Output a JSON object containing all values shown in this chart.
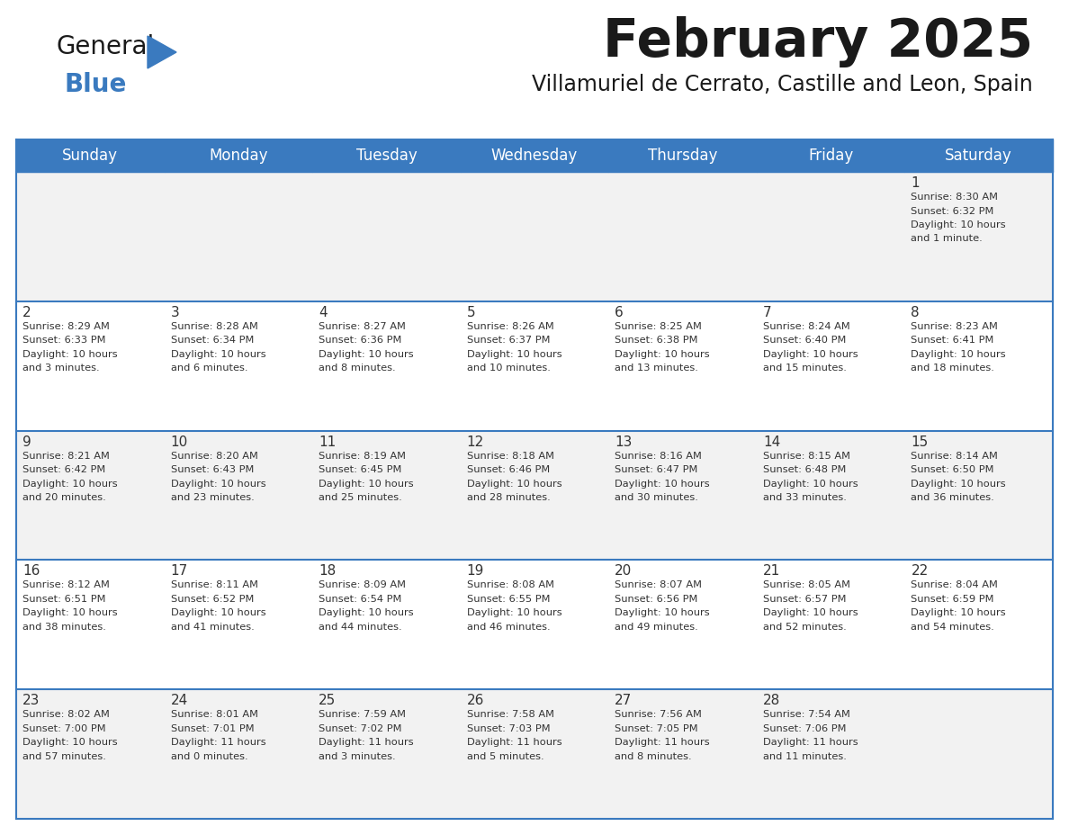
{
  "title": "February 2025",
  "subtitle": "Villamuriel de Cerrato, Castille and Leon, Spain",
  "header_color": "#3a7abf",
  "header_text_color": "#ffffff",
  "bg_color": "#ffffff",
  "cell_bg_even": "#f2f2f2",
  "cell_bg_odd": "#ffffff",
  "border_color": "#3a7abf",
  "day_headers": [
    "Sunday",
    "Monday",
    "Tuesday",
    "Wednesday",
    "Thursday",
    "Friday",
    "Saturday"
  ],
  "title_color": "#1a1a1a",
  "subtitle_color": "#1a1a1a",
  "number_color": "#333333",
  "text_color": "#333333",
  "logo_general_color": "#1a1a1a",
  "logo_blue_color": "#3a7abf",
  "days": [
    {
      "day": 1,
      "col": 6,
      "row": 0,
      "sunrise": "8:30 AM",
      "sunset": "6:32 PM",
      "daylight": "10 hours and 1 minute."
    },
    {
      "day": 2,
      "col": 0,
      "row": 1,
      "sunrise": "8:29 AM",
      "sunset": "6:33 PM",
      "daylight": "10 hours and 3 minutes."
    },
    {
      "day": 3,
      "col": 1,
      "row": 1,
      "sunrise": "8:28 AM",
      "sunset": "6:34 PM",
      "daylight": "10 hours and 6 minutes."
    },
    {
      "day": 4,
      "col": 2,
      "row": 1,
      "sunrise": "8:27 AM",
      "sunset": "6:36 PM",
      "daylight": "10 hours and 8 minutes."
    },
    {
      "day": 5,
      "col": 3,
      "row": 1,
      "sunrise": "8:26 AM",
      "sunset": "6:37 PM",
      "daylight": "10 hours and 10 minutes."
    },
    {
      "day": 6,
      "col": 4,
      "row": 1,
      "sunrise": "8:25 AM",
      "sunset": "6:38 PM",
      "daylight": "10 hours and 13 minutes."
    },
    {
      "day": 7,
      "col": 5,
      "row": 1,
      "sunrise": "8:24 AM",
      "sunset": "6:40 PM",
      "daylight": "10 hours and 15 minutes."
    },
    {
      "day": 8,
      "col": 6,
      "row": 1,
      "sunrise": "8:23 AM",
      "sunset": "6:41 PM",
      "daylight": "10 hours and 18 minutes."
    },
    {
      "day": 9,
      "col": 0,
      "row": 2,
      "sunrise": "8:21 AM",
      "sunset": "6:42 PM",
      "daylight": "10 hours and 20 minutes."
    },
    {
      "day": 10,
      "col": 1,
      "row": 2,
      "sunrise": "8:20 AM",
      "sunset": "6:43 PM",
      "daylight": "10 hours and 23 minutes."
    },
    {
      "day": 11,
      "col": 2,
      "row": 2,
      "sunrise": "8:19 AM",
      "sunset": "6:45 PM",
      "daylight": "10 hours and 25 minutes."
    },
    {
      "day": 12,
      "col": 3,
      "row": 2,
      "sunrise": "8:18 AM",
      "sunset": "6:46 PM",
      "daylight": "10 hours and 28 minutes."
    },
    {
      "day": 13,
      "col": 4,
      "row": 2,
      "sunrise": "8:16 AM",
      "sunset": "6:47 PM",
      "daylight": "10 hours and 30 minutes."
    },
    {
      "day": 14,
      "col": 5,
      "row": 2,
      "sunrise": "8:15 AM",
      "sunset": "6:48 PM",
      "daylight": "10 hours and 33 minutes."
    },
    {
      "day": 15,
      "col": 6,
      "row": 2,
      "sunrise": "8:14 AM",
      "sunset": "6:50 PM",
      "daylight": "10 hours and 36 minutes."
    },
    {
      "day": 16,
      "col": 0,
      "row": 3,
      "sunrise": "8:12 AM",
      "sunset": "6:51 PM",
      "daylight": "10 hours and 38 minutes."
    },
    {
      "day": 17,
      "col": 1,
      "row": 3,
      "sunrise": "8:11 AM",
      "sunset": "6:52 PM",
      "daylight": "10 hours and 41 minutes."
    },
    {
      "day": 18,
      "col": 2,
      "row": 3,
      "sunrise": "8:09 AM",
      "sunset": "6:54 PM",
      "daylight": "10 hours and 44 minutes."
    },
    {
      "day": 19,
      "col": 3,
      "row": 3,
      "sunrise": "8:08 AM",
      "sunset": "6:55 PM",
      "daylight": "10 hours and 46 minutes."
    },
    {
      "day": 20,
      "col": 4,
      "row": 3,
      "sunrise": "8:07 AM",
      "sunset": "6:56 PM",
      "daylight": "10 hours and 49 minutes."
    },
    {
      "day": 21,
      "col": 5,
      "row": 3,
      "sunrise": "8:05 AM",
      "sunset": "6:57 PM",
      "daylight": "10 hours and 52 minutes."
    },
    {
      "day": 22,
      "col": 6,
      "row": 3,
      "sunrise": "8:04 AM",
      "sunset": "6:59 PM",
      "daylight": "10 hours and 54 minutes."
    },
    {
      "day": 23,
      "col": 0,
      "row": 4,
      "sunrise": "8:02 AM",
      "sunset": "7:00 PM",
      "daylight": "10 hours and 57 minutes."
    },
    {
      "day": 24,
      "col": 1,
      "row": 4,
      "sunrise": "8:01 AM",
      "sunset": "7:01 PM",
      "daylight": "11 hours and 0 minutes."
    },
    {
      "day": 25,
      "col": 2,
      "row": 4,
      "sunrise": "7:59 AM",
      "sunset": "7:02 PM",
      "daylight": "11 hours and 3 minutes."
    },
    {
      "day": 26,
      "col": 3,
      "row": 4,
      "sunrise": "7:58 AM",
      "sunset": "7:03 PM",
      "daylight": "11 hours and 5 minutes."
    },
    {
      "day": 27,
      "col": 4,
      "row": 4,
      "sunrise": "7:56 AM",
      "sunset": "7:05 PM",
      "daylight": "11 hours and 8 minutes."
    },
    {
      "day": 28,
      "col": 5,
      "row": 4,
      "sunrise": "7:54 AM",
      "sunset": "7:06 PM",
      "daylight": "11 hours and 11 minutes."
    }
  ]
}
